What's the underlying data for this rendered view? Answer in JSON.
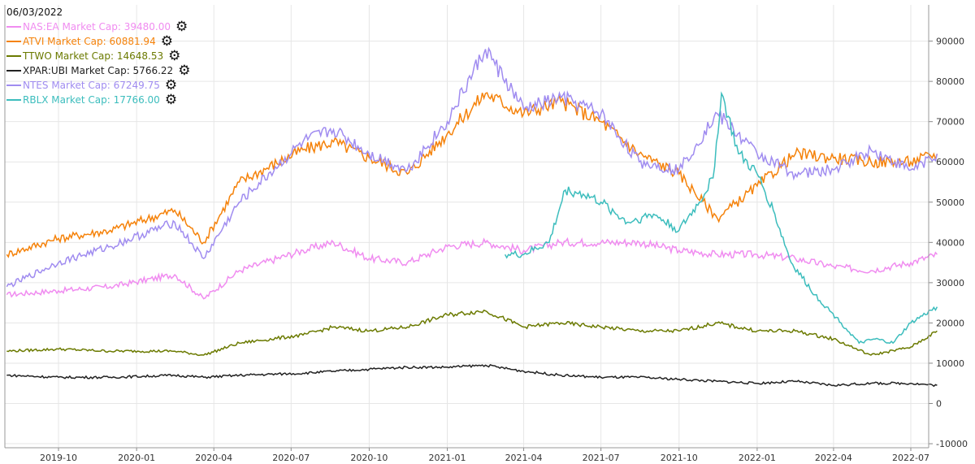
{
  "legend_date": "06/03/2022",
  "legend": [
    {
      "label": "NAS:EA Market Cap: 39480.00",
      "color": "#f08cf0"
    },
    {
      "label": "ATVI Market Cap: 60881.94",
      "color": "#f5820a"
    },
    {
      "label": "TTWO Market Cap: 14648.53",
      "color": "#6b7a00"
    },
    {
      "label": "XPAR:UBI Market Cap: 5766.22",
      "color": "#222222"
    },
    {
      "label": "NTES Market Cap: 67249.75",
      "color": "#a08cf0"
    },
    {
      "label": "RBLX Market Cap: 17766.00",
      "color": "#3cbdbd"
    }
  ],
  "gear_icon": "gear-icon",
  "chart_data": {
    "type": "line",
    "x_tick_labels": [
      "2019-10",
      "2020-01",
      "2020-04",
      "2020-07",
      "2020-10",
      "2021-01",
      "2021-04",
      "2021-07",
      "2021-10",
      "2022-01",
      "2022-04",
      "2022-07"
    ],
    "y_tick_labels": [
      "-10000",
      "0",
      "10000",
      "20000",
      "30000",
      "40000",
      "50000",
      "60000",
      "70000",
      "80000",
      "90000"
    ],
    "ylim": [
      -11000,
      99000
    ],
    "xlim": [
      "2019-08-01",
      "2022-08-01"
    ],
    "grid": true,
    "legend_position": "top-left",
    "series": [
      {
        "name": "NAS:EA",
        "color": "#f08cf0",
        "x": [
          "2019-08-01",
          "2019-10-01",
          "2019-12-01",
          "2020-02-15",
          "2020-03-20",
          "2020-05-01",
          "2020-07-15",
          "2020-08-20",
          "2020-10-01",
          "2020-11-15",
          "2021-01-01",
          "2021-02-15",
          "2021-04-01",
          "2021-05-15",
          "2021-07-01",
          "2021-08-15",
          "2021-10-01",
          "2021-11-15",
          "2022-01-01",
          "2022-02-15",
          "2022-04-01",
          "2022-05-15",
          "2022-07-01",
          "2022-08-01"
        ],
        "values": [
          27000,
          28000,
          29000,
          32000,
          26000,
          33000,
          38000,
          40000,
          36000,
          35000,
          39000,
          40000,
          38000,
          40000,
          40000,
          40000,
          38000,
          37000,
          37000,
          36000,
          34000,
          33000,
          35000,
          37000
        ]
      },
      {
        "name": "ATVI",
        "color": "#f5820a",
        "x": [
          "2019-08-01",
          "2019-10-01",
          "2019-12-01",
          "2020-02-15",
          "2020-03-20",
          "2020-05-01",
          "2020-07-15",
          "2020-08-20",
          "2020-10-01",
          "2020-11-15",
          "2021-01-01",
          "2021-02-15",
          "2021-04-01",
          "2021-05-15",
          "2021-07-01",
          "2021-08-15",
          "2021-10-01",
          "2021-11-15",
          "2022-01-01",
          "2022-02-15",
          "2022-04-01",
          "2022-05-15",
          "2022-07-01",
          "2022-08-01"
        ],
        "values": [
          37000,
          41000,
          43000,
          48000,
          40000,
          55000,
          63000,
          65000,
          61000,
          57000,
          67000,
          77000,
          72000,
          75000,
          70000,
          62000,
          57000,
          46000,
          54000,
          62000,
          61000,
          60000,
          60000,
          62000
        ]
      },
      {
        "name": "TTWO",
        "color": "#6b7a00",
        "x": [
          "2019-08-01",
          "2019-10-01",
          "2019-12-01",
          "2020-02-15",
          "2020-03-20",
          "2020-05-01",
          "2020-07-15",
          "2020-08-20",
          "2020-10-01",
          "2020-11-15",
          "2021-01-01",
          "2021-02-15",
          "2021-04-01",
          "2021-05-15",
          "2021-07-01",
          "2021-08-15",
          "2021-10-01",
          "2021-11-15",
          "2022-01-01",
          "2022-02-15",
          "2022-04-01",
          "2022-05-15",
          "2022-07-01",
          "2022-08-01"
        ],
        "values": [
          13000,
          13500,
          13000,
          13000,
          12000,
          15000,
          17000,
          19000,
          18000,
          19000,
          22000,
          23000,
          19000,
          20000,
          19000,
          18000,
          18000,
          20000,
          18000,
          18000,
          16000,
          12000,
          14000,
          18000
        ]
      },
      {
        "name": "XPAR:UBI",
        "color": "#222222",
        "x": [
          "2019-08-01",
          "2019-10-01",
          "2019-12-01",
          "2020-02-15",
          "2020-03-20",
          "2020-05-01",
          "2020-07-15",
          "2020-08-20",
          "2020-10-01",
          "2020-11-15",
          "2021-01-01",
          "2021-02-15",
          "2021-04-01",
          "2021-05-15",
          "2021-07-01",
          "2021-08-15",
          "2021-10-01",
          "2021-11-15",
          "2022-01-01",
          "2022-02-15",
          "2022-04-01",
          "2022-05-15",
          "2022-07-01",
          "2022-08-01"
        ],
        "values": [
          7000,
          6500,
          6500,
          7000,
          6500,
          7000,
          7500,
          8000,
          8500,
          9000,
          9000,
          9500,
          8000,
          7000,
          6500,
          6500,
          6000,
          5500,
          5000,
          5500,
          4500,
          5000,
          5000,
          4500
        ]
      },
      {
        "name": "NTES",
        "color": "#a08cf0",
        "x": [
          "2019-08-01",
          "2019-10-01",
          "2019-12-01",
          "2020-02-15",
          "2020-03-20",
          "2020-05-01",
          "2020-07-15",
          "2020-08-20",
          "2020-10-01",
          "2020-11-15",
          "2021-01-01",
          "2021-02-15",
          "2021-04-01",
          "2021-05-15",
          "2021-07-01",
          "2021-08-15",
          "2021-10-01",
          "2021-11-15",
          "2022-01-01",
          "2022-02-15",
          "2022-04-01",
          "2022-05-15",
          "2022-07-01",
          "2022-08-01"
        ],
        "values": [
          29000,
          35000,
          39000,
          45000,
          36000,
          50000,
          65000,
          68000,
          62000,
          58000,
          70000,
          88000,
          73000,
          76000,
          72000,
          60000,
          58000,
          72000,
          62000,
          57000,
          58000,
          63000,
          58000,
          62000
        ]
      },
      {
        "name": "RBLX",
        "color": "#3cbdbd",
        "x": [
          "2021-03-10",
          "2021-04-01",
          "2021-05-01",
          "2021-05-20",
          "2021-06-10",
          "2021-07-01",
          "2021-08-01",
          "2021-09-01",
          "2021-10-01",
          "2021-10-25",
          "2021-11-10",
          "2021-11-20",
          "2021-12-10",
          "2022-01-01",
          "2022-01-20",
          "2022-02-10",
          "2022-03-10",
          "2022-04-10",
          "2022-05-01",
          "2022-05-20",
          "2022-06-10",
          "2022-07-01",
          "2022-08-01"
        ],
        "values": [
          37000,
          37000,
          40000,
          53000,
          52000,
          50000,
          45000,
          47000,
          43000,
          50000,
          56000,
          77000,
          62000,
          57000,
          48000,
          35000,
          27000,
          20000,
          15000,
          16000,
          15000,
          20000,
          24000
        ]
      }
    ]
  }
}
